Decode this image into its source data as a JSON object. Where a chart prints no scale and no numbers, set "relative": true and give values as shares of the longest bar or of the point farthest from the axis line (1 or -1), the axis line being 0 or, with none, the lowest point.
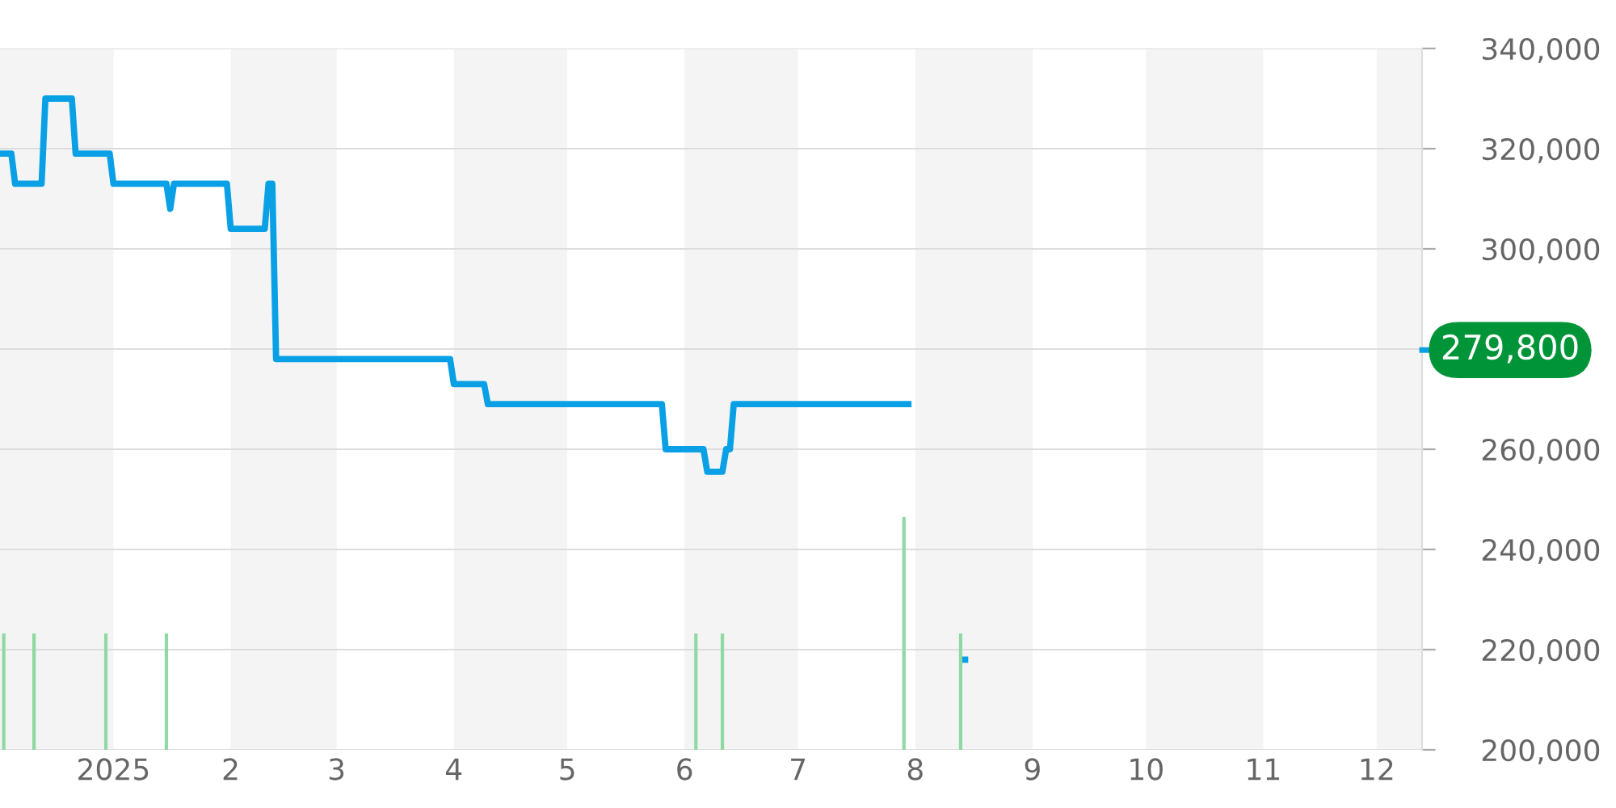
{
  "chart_data": [
    {
      "type": "line",
      "xlim": [
        "2024-12-02",
        "2025-12-13"
      ],
      "ylim": [
        200000,
        340000
      ],
      "xticks": [
        {
          "value": "2025-01-01",
          "label": "2025"
        },
        {
          "value": "2025-02-01",
          "label": "2"
        },
        {
          "value": "2025-03-01",
          "label": "3"
        },
        {
          "value": "2025-04-01",
          "label": "4"
        },
        {
          "value": "2025-05-01",
          "label": "5"
        },
        {
          "value": "2025-06-01",
          "label": "6"
        },
        {
          "value": "2025-07-01",
          "label": "7"
        },
        {
          "value": "2025-08-01",
          "label": "8"
        },
        {
          "value": "2025-09-01",
          "label": "9"
        },
        {
          "value": "2025-10-01",
          "label": "10"
        },
        {
          "value": "2025-11-01",
          "label": "11"
        },
        {
          "value": "2025-12-01",
          "label": "12"
        }
      ],
      "yticks": [
        {
          "value": 200000,
          "label": "200,000"
        },
        {
          "value": 220000,
          "label": "220,000"
        },
        {
          "value": 240000,
          "label": "240,000"
        },
        {
          "value": 260000,
          "label": "260,000"
        },
        {
          "value": 280000,
          "label": null
        },
        {
          "value": 300000,
          "label": "300,000"
        },
        {
          "value": 320000,
          "label": "320,000"
        },
        {
          "value": 340000,
          "label": "340,000"
        }
      ],
      "grid": "y",
      "marker": "none",
      "line_style": "solid",
      "series": [
        {
          "color": "#0aa0e6",
          "x": [
            "2024-12-02",
            "2024-12-05",
            "2024-12-06",
            "2024-12-13",
            "2024-12-14",
            "2024-12-21",
            "2024-12-22",
            "2024-12-31",
            "2025-01-01",
            "2025-01-15",
            "2025-01-16",
            "2025-01-17",
            "2025-01-31",
            "2025-02-01",
            "2025-02-10",
            "2025-02-11",
            "2025-02-12",
            "2025-02-13",
            "2025-03-31",
            "2025-04-01",
            "2025-04-09",
            "2025-04-10",
            "2025-05-26",
            "2025-05-27",
            "2025-06-06",
            "2025-06-07",
            "2025-06-11",
            "2025-06-12",
            "2025-06-13",
            "2025-06-14",
            "2025-07-31"
          ],
          "values": [
            319000,
            319000,
            313000,
            313000,
            330000,
            330000,
            319000,
            319000,
            313000,
            313000,
            308000,
            313000,
            313000,
            304000,
            304000,
            313000,
            313000,
            278000,
            278000,
            273000,
            273000,
            269000,
            269000,
            260000,
            260000,
            255500,
            255500,
            260000,
            260000,
            269000,
            269000
          ]
        },
        {
          "color": "#0aa0e6",
          "x": [
            "2025-08-13",
            "2025-08-15"
          ],
          "values": [
            218000,
            218000
          ]
        }
      ],
      "ref_lines": [
        {
          "axis": "y",
          "value": 279800,
          "label": "279,800",
          "color": "#0aa0e6"
        }
      ],
      "bands": [
        {
          "axis": "x",
          "from": "2024-12-02",
          "to": "2025-01-01",
          "color": "#f4f4f4"
        },
        {
          "axis": "x",
          "from": "2025-02-01",
          "to": "2025-03-01",
          "color": "#f4f4f4"
        },
        {
          "axis": "x",
          "from": "2025-04-01",
          "to": "2025-05-01",
          "color": "#f4f4f4"
        },
        {
          "axis": "x",
          "from": "2025-06-01",
          "to": "2025-07-01",
          "color": "#f4f4f4"
        },
        {
          "axis": "x",
          "from": "2025-08-01",
          "to": "2025-09-01",
          "color": "#f4f4f4"
        },
        {
          "axis": "x",
          "from": "2025-10-01",
          "to": "2025-11-01",
          "color": "#f4f4f4"
        },
        {
          "axis": "x",
          "from": "2025-12-01",
          "to": "2025-12-13",
          "color": "#f4f4f4"
        }
      ]
    },
    {
      "type": "bar",
      "relative": true,
      "xlim": [
        "2024-12-02",
        "2025-12-13"
      ],
      "tick_labels": false,
      "x": [
        "2024-12-03",
        "2024-12-11",
        "2024-12-30",
        "2025-01-15",
        "2025-06-04",
        "2025-06-11",
        "2025-07-29",
        "2025-08-13"
      ],
      "values": [
        0.5,
        0.5,
        0.5,
        0.5,
        0.5,
        0.5,
        1,
        0.5
      ],
      "color": "#8fd9a3"
    }
  ]
}
